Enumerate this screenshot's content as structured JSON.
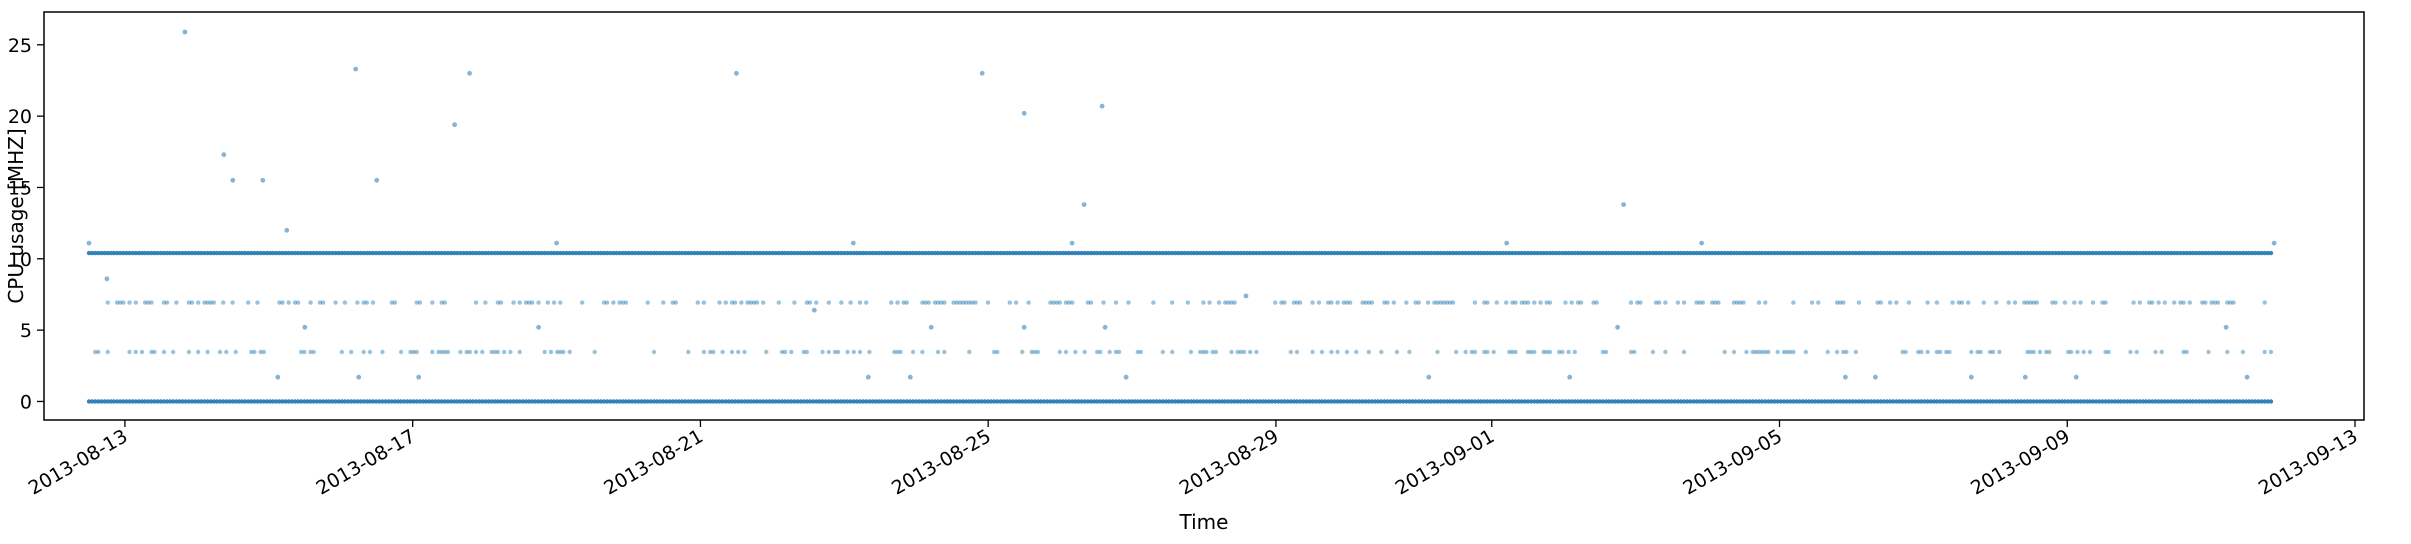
{
  "chart_data": {
    "type": "scatter",
    "title": "",
    "xlabel": "Time",
    "ylabel": "CPU usage [MHZ]",
    "xlim": [
      "2013-08-11T21:00",
      "2013-09-13T03:00"
    ],
    "ylim": [
      -1.3,
      27.3
    ],
    "y_ticks": [
      0,
      5,
      10,
      15,
      20,
      25
    ],
    "x_ticks": [
      "2013-08-13",
      "2013-08-17",
      "2013-08-21",
      "2013-08-25",
      "2013-08-29",
      "2013-09-01",
      "2013-09-05",
      "2013-09-09",
      "2013-09-13"
    ],
    "grid": false,
    "marker_color": "#1f77b4",
    "data_range": [
      "2013-08-12T12:00",
      "2013-09-11T21:00"
    ],
    "series": [
      {
        "label_levels_mhz": [
          0,
          3.47,
          6.93,
          10.4
        ],
        "points": [
          [
            "2013-08-12T12:00",
            11.1
          ],
          [
            "2013-08-12T18:00",
            8.6
          ],
          [
            "2013-08-13T20:00",
            25.9
          ],
          [
            "2013-08-14T09:00",
            17.3
          ],
          [
            "2013-08-14T12:00",
            15.5
          ],
          [
            "2013-08-14T22:00",
            15.5
          ],
          [
            "2013-08-15T06:00",
            12.0
          ],
          [
            "2013-08-15T03:00",
            1.7
          ],
          [
            "2013-08-16T05:00",
            23.3
          ],
          [
            "2013-08-16T12:00",
            15.5
          ],
          [
            "2013-08-16T06:00",
            1.7
          ],
          [
            "2013-08-17T02:00",
            1.7
          ],
          [
            "2013-08-17T14:00",
            19.4
          ],
          [
            "2013-08-17T19:00",
            23.0
          ],
          [
            "2013-08-15T12:00",
            5.2
          ],
          [
            "2013-08-18T18:00",
            5.2
          ],
          [
            "2013-08-19T00:00",
            11.1
          ],
          [
            "2013-08-21T12:00",
            23.0
          ],
          [
            "2013-08-22T14:00",
            6.4
          ],
          [
            "2013-08-23T03:00",
            11.1
          ],
          [
            "2013-08-23T08:00",
            1.7
          ],
          [
            "2013-08-23T22:00",
            1.7
          ],
          [
            "2013-08-24T05:00",
            5.2
          ],
          [
            "2013-08-24T22:00",
            23.0
          ],
          [
            "2013-08-25T12:00",
            20.2
          ],
          [
            "2013-08-25T12:00",
            5.2
          ],
          [
            "2013-08-26T04:00",
            11.1
          ],
          [
            "2013-08-26T08:00",
            13.8
          ],
          [
            "2013-08-26T14:00",
            20.7
          ],
          [
            "2013-08-26T15:00",
            5.2
          ],
          [
            "2013-08-26T22:00",
            1.7
          ],
          [
            "2013-08-28T14:00",
            7.4
          ],
          [
            "2013-08-31T03:00",
            1.7
          ],
          [
            "2013-09-01T05:00",
            11.1
          ],
          [
            "2013-09-02T02:00",
            1.7
          ],
          [
            "2013-09-02T20:00",
            13.8
          ],
          [
            "2013-09-02T18:00",
            5.2
          ],
          [
            "2013-09-03T22:00",
            11.1
          ],
          [
            "2013-09-05T22:00",
            1.7
          ],
          [
            "2013-09-06T08:00",
            1.7
          ],
          [
            "2013-09-07T16:00",
            1.7
          ],
          [
            "2013-09-08T10:00",
            1.7
          ],
          [
            "2013-09-09T03:00",
            1.7
          ],
          [
            "2013-09-11T05:00",
            5.2
          ],
          [
            "2013-09-11T12:00",
            1.7
          ],
          [
            "2013-09-11T21:00",
            11.1
          ]
        ]
      }
    ]
  }
}
